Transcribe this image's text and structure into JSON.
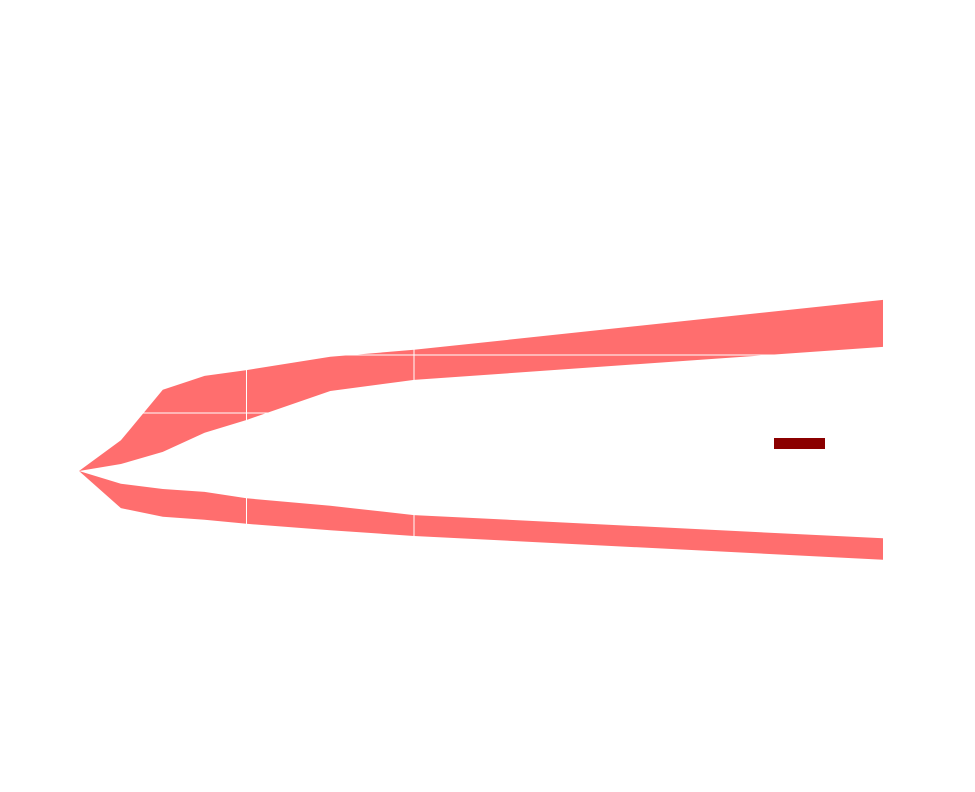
{
  "chart_data": {
    "type": "band",
    "x": [
      0,
      0.25,
      0.5,
      0.75,
      1,
      1.5,
      2,
      4.8
    ],
    "series": [
      {
        "color": "#ff6e6e",
        "upper": [
          0,
          0.53,
          1.4,
          1.64,
          1.74,
          1.97,
          2.09,
          2.95
        ],
        "lower": [
          0,
          0.12,
          0.33,
          0.66,
          0.88,
          1.38,
          1.57,
          2.14
        ]
      },
      {
        "color": "#ff6e6e",
        "upper": [
          0,
          -0.22,
          -0.31,
          -0.36,
          -0.47,
          -0.6,
          -0.76,
          -1.16
        ],
        "lower": [
          0,
          -0.64,
          -0.79,
          -0.84,
          -0.91,
          -1.02,
          -1.12,
          -1.53
        ]
      }
    ],
    "xlim": [
      0,
      4.8
    ],
    "ylim": [
      -4,
      6
    ],
    "xticks": [
      1,
      2
    ],
    "yticks": [
      1,
      2
    ],
    "grid": true,
    "grid_color": "#ffffff",
    "legend": {
      "loc": "center right",
      "color": "#8b0000"
    }
  }
}
